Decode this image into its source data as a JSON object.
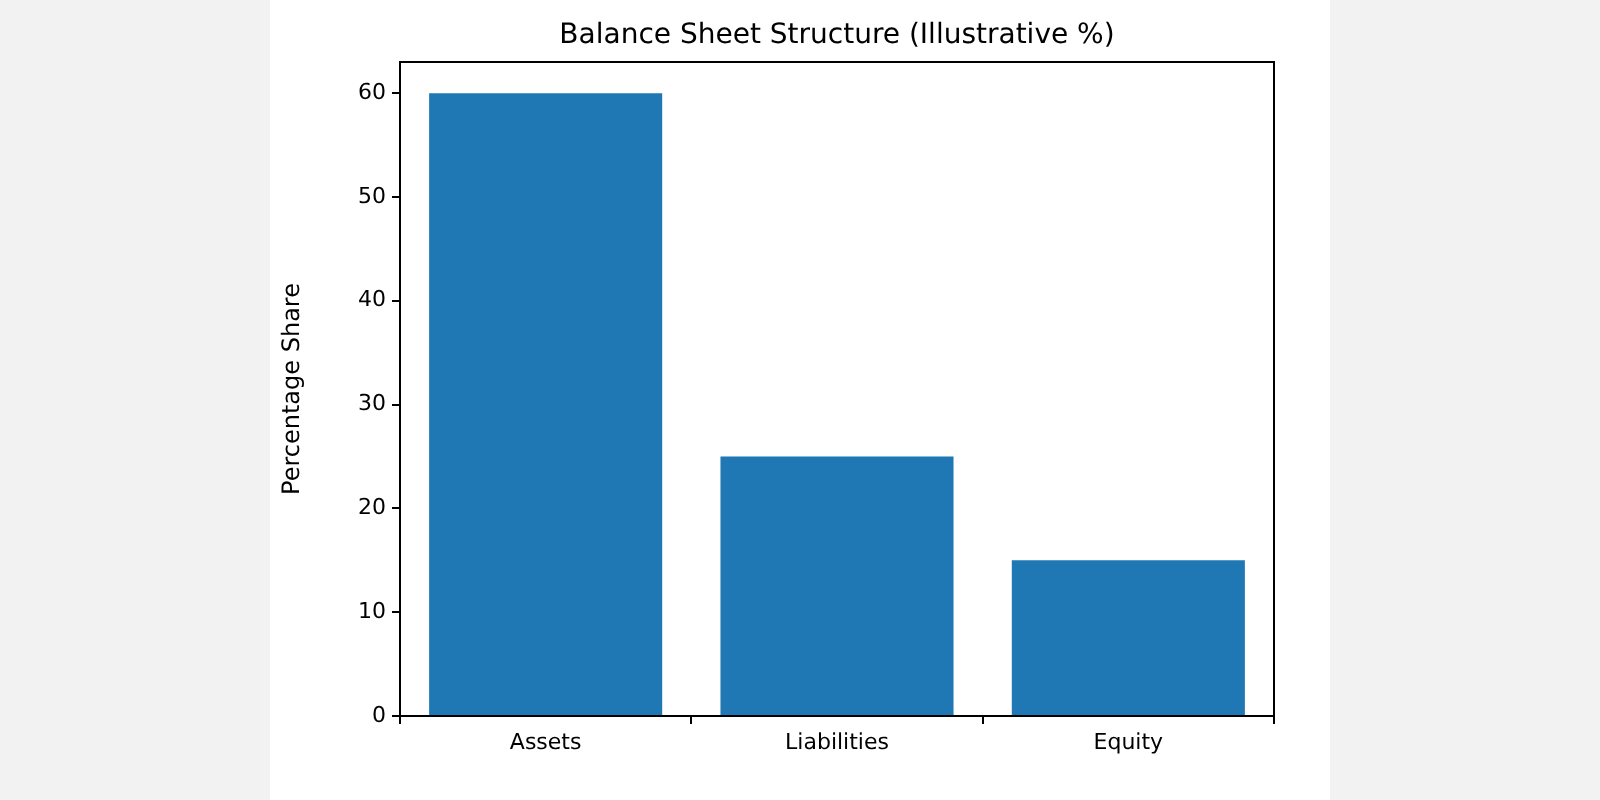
{
  "chart_data": {
    "type": "bar",
    "title": "Balance Sheet Structure (Illustrative %)",
    "ylabel": "Percentage Share",
    "categories": [
      "Assets",
      "Liabilities",
      "Equity"
    ],
    "values": [
      60,
      25,
      15
    ],
    "color": "#1f77b4",
    "ylim": [
      0,
      63
    ],
    "yticks": [
      0,
      10,
      20,
      30,
      40,
      50,
      60
    ],
    "grid": false,
    "legend": false
  }
}
